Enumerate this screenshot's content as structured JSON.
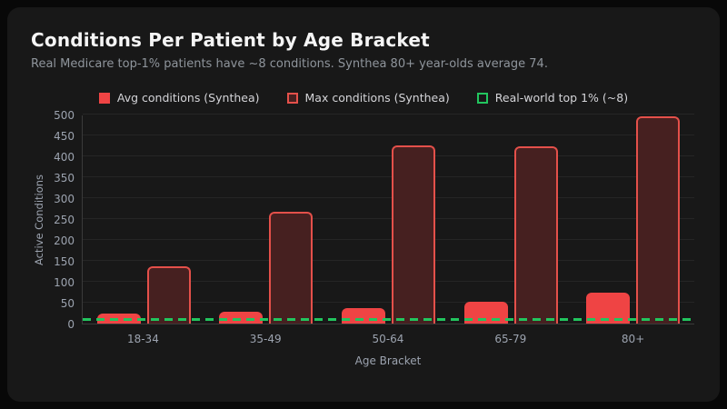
{
  "chart_data": {
    "type": "bar",
    "title": "Conditions Per Patient by Age Bracket",
    "subtitle": "Real Medicare top-1% patients have ~8 conditions. Synthea 80+ year-olds average 74.",
    "xlabel": "Age Bracket",
    "ylabel": "Active Conditions",
    "categories": [
      "18-34",
      "35-49",
      "50-64",
      "65-79",
      "80+"
    ],
    "series": [
      {
        "name": "Avg conditions (Synthea)",
        "values": [
          23,
          28,
          38,
          53,
          74
        ]
      },
      {
        "name": "Max conditions (Synthea)",
        "values": [
          138,
          267,
          426,
          424,
          495
        ]
      }
    ],
    "reference_line": {
      "label": "Real-world top 1% (~8)",
      "value": 8
    },
    "ylim": [
      0,
      500
    ],
    "yticks": [
      0,
      50,
      100,
      150,
      200,
      250,
      300,
      350,
      400,
      450,
      500
    ],
    "grid": true,
    "legend_position": "top",
    "colors": {
      "avg_bar": "#ef4444",
      "max_bar_fill": "#462020",
      "max_bar_border": "#e4504a",
      "reference_line": "#22c55e",
      "title_text": "#f5f5f5",
      "subtitle_text": "#8f959c",
      "axis_text": "#9ca3af",
      "legend_text": "#d4d4d8",
      "gridline": "#252525",
      "card_background": "#181818",
      "page_background": "#080808"
    }
  }
}
